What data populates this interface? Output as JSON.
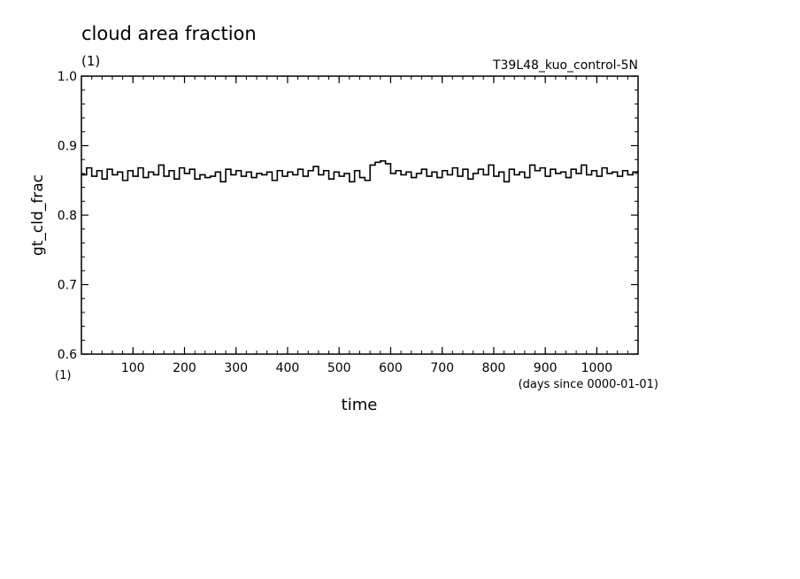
{
  "chart_data": {
    "type": "line",
    "title": "cloud area fraction",
    "title_units": "(1)",
    "dataset_label": "T39L48_kuo_control-5N",
    "ylabel": "gt_cld_frac",
    "y_units": "(1)",
    "xlabel": "time",
    "x_units": "(days since 0000-01-01)",
    "xlim": [
      0,
      1080
    ],
    "ylim": [
      0.6,
      1.0
    ],
    "x_ticks": [
      100,
      200,
      300,
      400,
      500,
      600,
      700,
      800,
      900,
      1000
    ],
    "y_ticks": [
      0.6,
      0.7,
      0.8,
      0.9,
      1.0
    ],
    "y_tick_labels": [
      "0.6",
      "0.7",
      "0.8",
      "0.9",
      "1.0"
    ],
    "x_minor_step": 20,
    "y_minor_step": 0.02,
    "grid": false,
    "legend": "none",
    "series_color": "#000000",
    "series": [
      {
        "x": [
          0,
          10,
          20,
          30,
          40,
          50,
          60,
          70,
          80,
          90,
          100,
          110,
          120,
          130,
          140,
          150,
          160,
          170,
          180,
          190,
          200,
          210,
          220,
          230,
          240,
          250,
          260,
          270,
          280,
          290,
          300,
          310,
          320,
          330,
          340,
          350,
          360,
          370,
          380,
          390,
          400,
          410,
          420,
          430,
          440,
          450,
          460,
          470,
          480,
          490,
          500,
          510,
          520,
          530,
          540,
          550,
          560,
          570,
          580,
          590,
          600,
          610,
          620,
          630,
          640,
          650,
          660,
          670,
          680,
          690,
          700,
          710,
          720,
          730,
          740,
          750,
          760,
          770,
          780,
          790,
          800,
          810,
          820,
          830,
          840,
          850,
          860,
          870,
          880,
          890,
          900,
          910,
          920,
          930,
          940,
          950,
          960,
          970,
          980,
          990,
          1000,
          1010,
          1020,
          1030,
          1040,
          1050,
          1060,
          1070,
          1080
        ],
        "y": [
          0.858,
          0.868,
          0.856,
          0.864,
          0.852,
          0.866,
          0.858,
          0.862,
          0.85,
          0.864,
          0.856,
          0.868,
          0.854,
          0.862,
          0.858,
          0.872,
          0.856,
          0.864,
          0.852,
          0.868,
          0.86,
          0.866,
          0.852,
          0.858,
          0.854,
          0.856,
          0.862,
          0.848,
          0.866,
          0.858,
          0.864,
          0.856,
          0.862,
          0.854,
          0.86,
          0.858,
          0.862,
          0.85,
          0.864,
          0.856,
          0.862,
          0.858,
          0.866,
          0.856,
          0.864,
          0.87,
          0.858,
          0.864,
          0.852,
          0.862,
          0.856,
          0.86,
          0.848,
          0.864,
          0.854,
          0.85,
          0.872,
          0.876,
          0.878,
          0.874,
          0.86,
          0.864,
          0.858,
          0.862,
          0.854,
          0.86,
          0.866,
          0.856,
          0.862,
          0.854,
          0.864,
          0.858,
          0.868,
          0.856,
          0.866,
          0.852,
          0.86,
          0.866,
          0.858,
          0.872,
          0.856,
          0.862,
          0.848,
          0.866,
          0.858,
          0.862,
          0.854,
          0.872,
          0.864,
          0.868,
          0.856,
          0.866,
          0.86,
          0.862,
          0.854,
          0.866,
          0.86,
          0.872,
          0.858,
          0.864,
          0.856,
          0.868,
          0.86,
          0.862,
          0.856,
          0.864,
          0.858,
          0.862,
          0.864
        ]
      }
    ]
  }
}
